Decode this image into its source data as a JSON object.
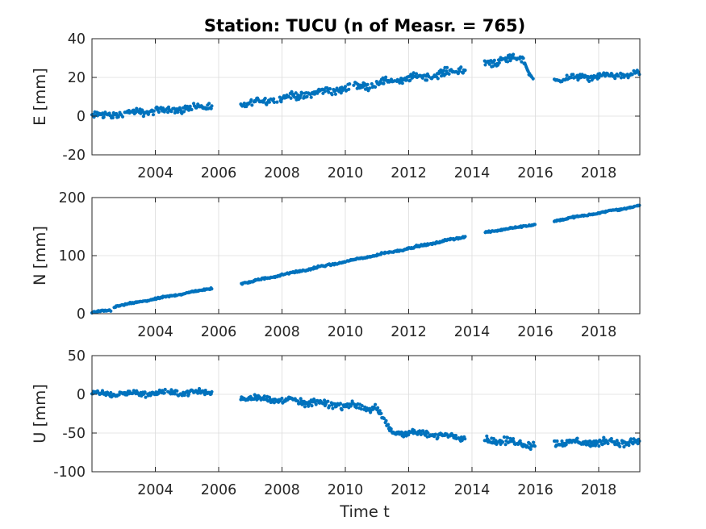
{
  "title": "Station: TUCU (n of Measr. = 765)",
  "xlabel": "Time t",
  "colors": {
    "marker": "#0072BD",
    "axis": "#262626",
    "grid": "#dcdcdc"
  },
  "chart_data": [
    {
      "type": "scatter",
      "name": "E",
      "ylabel": "E [mm]",
      "xlim": [
        2002.0,
        2019.3
      ],
      "ylim": [
        -20,
        40
      ],
      "xticks": [
        2004,
        2006,
        2008,
        2010,
        2012,
        2014,
        2016,
        2018
      ],
      "yticks": [
        -20,
        0,
        20,
        40
      ],
      "grid": true,
      "segments": [
        {
          "x0": 2002.0,
          "x1": 2005.8,
          "y0": 0,
          "y1": 5,
          "noise": 2.0
        },
        {
          "x0": 2006.7,
          "x1": 2013.8,
          "y0": 6,
          "y1": 24,
          "noise": 2.2
        },
        {
          "x0": 2014.4,
          "x1": 2015.6,
          "y0": 28,
          "y1": 30,
          "noise": 2.5
        },
        {
          "x0": 2015.6,
          "x1": 2015.95,
          "y0": 30,
          "y1": 18,
          "noise": 1.5
        },
        {
          "x0": 2016.6,
          "x1": 2019.3,
          "y0": 19,
          "y1": 22,
          "noise": 1.8
        }
      ]
    },
    {
      "type": "scatter",
      "name": "N",
      "ylabel": "N [mm]",
      "xlim": [
        2002.0,
        2019.3
      ],
      "ylim": [
        0,
        200
      ],
      "xticks": [
        2004,
        2006,
        2008,
        2010,
        2012,
        2014,
        2016,
        2018
      ],
      "yticks": [
        0,
        100,
        200
      ],
      "grid": true,
      "segments": [
        {
          "x0": 2002.0,
          "x1": 2002.6,
          "y0": 2,
          "y1": 6,
          "noise": 1.5
        },
        {
          "x0": 2002.7,
          "x1": 2005.8,
          "y0": 12,
          "y1": 44,
          "noise": 1.5
        },
        {
          "x0": 2006.7,
          "x1": 2013.8,
          "y0": 52,
          "y1": 133,
          "noise": 1.8
        },
        {
          "x0": 2014.4,
          "x1": 2016.0,
          "y0": 140,
          "y1": 154,
          "noise": 1.5
        },
        {
          "x0": 2016.6,
          "x1": 2019.3,
          "y0": 160,
          "y1": 186,
          "noise": 1.5
        }
      ]
    },
    {
      "type": "scatter",
      "name": "U",
      "ylabel": "U [mm]",
      "xlim": [
        2002.0,
        2019.3
      ],
      "ylim": [
        -100,
        50
      ],
      "xticks": [
        2004,
        2006,
        2008,
        2010,
        2012,
        2014,
        2016,
        2018
      ],
      "yticks": [
        -100,
        -50,
        0,
        50
      ],
      "grid": true,
      "segments": [
        {
          "x0": 2002.0,
          "x1": 2005.8,
          "y0": 0,
          "y1": 3,
          "noise": 4.0
        },
        {
          "x0": 2006.7,
          "x1": 2011.0,
          "y0": -3,
          "y1": -18,
          "noise": 5.0
        },
        {
          "x0": 2011.0,
          "x1": 2011.4,
          "y0": -20,
          "y1": -45,
          "noise": 4.0
        },
        {
          "x0": 2011.4,
          "x1": 2013.8,
          "y0": -48,
          "y1": -55,
          "noise": 4.5
        },
        {
          "x0": 2014.4,
          "x1": 2016.0,
          "y0": -58,
          "y1": -65,
          "noise": 5.0
        },
        {
          "x0": 2016.6,
          "x1": 2019.3,
          "y0": -62,
          "y1": -62,
          "noise": 5.0
        }
      ]
    }
  ]
}
